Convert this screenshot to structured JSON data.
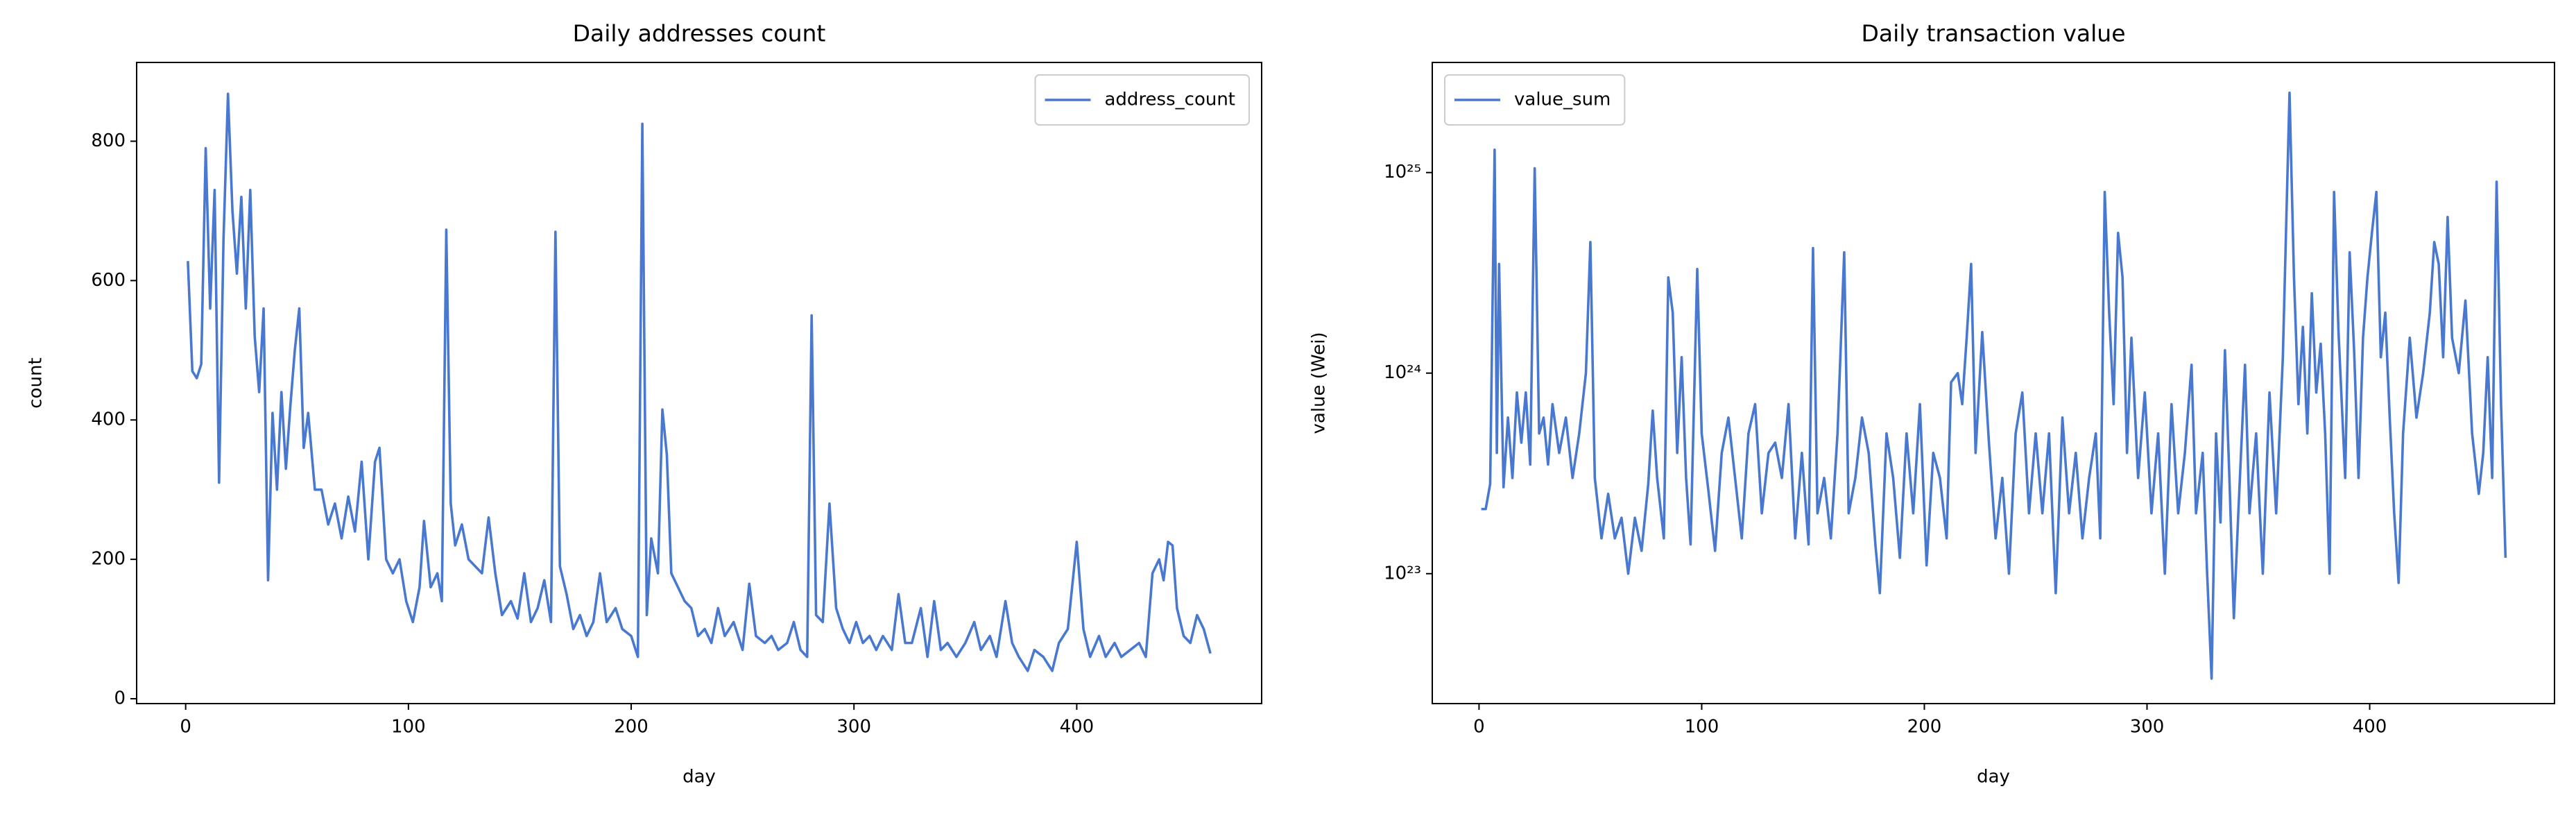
{
  "chart_data": [
    {
      "type": "line",
      "title": "Daily addresses count",
      "xlabel": "day",
      "ylabel": "count",
      "xlim": [
        -22,
        483
      ],
      "ylim": [
        -7,
        913
      ],
      "xticks": [
        0,
        100,
        200,
        300,
        400
      ],
      "yticks": [
        0,
        200,
        400,
        600,
        800
      ],
      "legend": "upper right",
      "x": [
        1,
        3,
        5,
        7,
        9,
        11,
        13,
        15,
        17,
        19,
        21,
        23,
        25,
        27,
        29,
        31,
        33,
        35,
        37,
        39,
        41,
        43,
        45,
        47,
        49,
        51,
        53,
        55,
        58,
        61,
        64,
        67,
        70,
        73,
        76,
        79,
        82,
        85,
        87,
        90,
        93,
        96,
        99,
        102,
        105,
        107,
        110,
        113,
        115,
        117,
        119,
        121,
        124,
        127,
        130,
        133,
        136,
        139,
        142,
        146,
        149,
        152,
        155,
        158,
        161,
        164,
        166,
        168,
        171,
        174,
        177,
        180,
        183,
        186,
        189,
        193,
        196,
        200,
        203,
        205,
        207,
        209,
        212,
        214,
        216,
        218,
        221,
        224,
        227,
        230,
        233,
        236,
        239,
        242,
        246,
        250,
        253,
        256,
        260,
        263,
        266,
        270,
        273,
        276,
        279,
        281,
        283,
        286,
        289,
        292,
        295,
        298,
        301,
        304,
        307,
        310,
        313,
        317,
        320,
        323,
        326,
        330,
        333,
        336,
        339,
        342,
        346,
        350,
        354,
        357,
        361,
        364,
        368,
        371,
        374,
        378,
        381,
        385,
        389,
        392,
        396,
        400,
        403,
        406,
        410,
        413,
        417,
        420,
        424,
        428,
        431,
        434,
        437,
        439,
        441,
        443,
        445,
        448,
        451,
        454,
        457,
        460
      ],
      "series": [
        {
          "name": "address_count",
          "color": "#4878cf",
          "values": [
            628,
            470,
            460,
            480,
            790,
            560,
            730,
            310,
            660,
            868,
            700,
            610,
            720,
            560,
            730,
            520,
            440,
            560,
            170,
            410,
            300,
            440,
            330,
            420,
            500,
            560,
            360,
            410,
            300,
            300,
            250,
            280,
            230,
            290,
            240,
            340,
            200,
            340,
            360,
            200,
            180,
            200,
            140,
            110,
            160,
            255,
            160,
            180,
            140,
            673,
            280,
            220,
            250,
            200,
            190,
            180,
            260,
            180,
            120,
            140,
            115,
            180,
            110,
            130,
            170,
            110,
            670,
            190,
            150,
            100,
            120,
            90,
            110,
            180,
            110,
            130,
            100,
            90,
            60,
            825,
            120,
            230,
            180,
            415,
            350,
            180,
            160,
            140,
            130,
            90,
            100,
            80,
            130,
            90,
            110,
            70,
            165,
            90,
            80,
            90,
            70,
            80,
            110,
            70,
            60,
            550,
            120,
            110,
            280,
            130,
            100,
            80,
            110,
            80,
            90,
            70,
            90,
            70,
            150,
            80,
            80,
            130,
            60,
            140,
            70,
            80,
            60,
            80,
            110,
            70,
            90,
            60,
            140,
            80,
            60,
            40,
            70,
            60,
            40,
            80,
            100,
            225,
            100,
            60,
            90,
            60,
            80,
            60,
            70,
            80,
            60,
            180,
            200,
            170,
            225,
            220,
            130,
            90,
            80,
            120,
            100,
            65
          ]
        }
      ]
    },
    {
      "type": "line",
      "title": "Daily transaction value",
      "xlabel": "day",
      "ylabel": "value (Wei)",
      "yscale": "log",
      "xlim": [
        -21,
        483
      ],
      "ylim": [
        2.25e+22,
        3.54e+25
      ],
      "xticks": [
        0,
        100,
        200,
        300,
        400
      ],
      "yticks": [
        {
          "value": 1e+23,
          "label": "10²³"
        },
        {
          "value": 1e+24,
          "label": "10²⁴"
        },
        {
          "value": 1e+25,
          "label": "10²⁵"
        }
      ],
      "legend": "upper left",
      "x": [
        1,
        3,
        5,
        7,
        8,
        9,
        11,
        13,
        15,
        17,
        19,
        21,
        23,
        25,
        27,
        29,
        31,
        33,
        36,
        39,
        42,
        45,
        48,
        50,
        52,
        55,
        58,
        61,
        64,
        67,
        70,
        73,
        76,
        78,
        80,
        83,
        85,
        87,
        89,
        91,
        93,
        95,
        98,
        100,
        103,
        106,
        109,
        112,
        115,
        118,
        121,
        124,
        127,
        130,
        133,
        136,
        139,
        142,
        145,
        148,
        150,
        152,
        155,
        158,
        161,
        164,
        166,
        169,
        172,
        175,
        178,
        180,
        183,
        186,
        189,
        192,
        195,
        198,
        201,
        204,
        207,
        210,
        212,
        215,
        217,
        219,
        221,
        223,
        226,
        229,
        232,
        235,
        238,
        241,
        244,
        247,
        250,
        253,
        256,
        259,
        262,
        265,
        268,
        271,
        274,
        277,
        279,
        281,
        283,
        285,
        287,
        289,
        291,
        293,
        296,
        299,
        302,
        305,
        308,
        311,
        314,
        317,
        320,
        322,
        325,
        327,
        329,
        331,
        333,
        335,
        337,
        339,
        341,
        344,
        346,
        349,
        352,
        355,
        358,
        361,
        364,
        366,
        368,
        370,
        372,
        374,
        376,
        378,
        380,
        382,
        384,
        386,
        389,
        391,
        393,
        395,
        397,
        399,
        401,
        403,
        405,
        407,
        409,
        411,
        413,
        415,
        418,
        421,
        424,
        427,
        429,
        431,
        433,
        435,
        437,
        440,
        443,
        446,
        449,
        451,
        453,
        455,
        457,
        459,
        461
      ],
      "series": [
        {
          "name": "value_sum",
          "color": "#4878cf",
          "values": [
            2.1e+23,
            2.1e+23,
            2.8e+23,
            1.3e+25,
            4e+23,
            3.5e+24,
            2.7e+23,
            6e+23,
            3e+23,
            8e+23,
            4.5e+23,
            8e+23,
            3.5e+23,
            1.05e+25,
            5e+23,
            6e+23,
            3.5e+23,
            7e+23,
            4e+23,
            6e+23,
            3e+23,
            5e+23,
            1e+24,
            4.5e+24,
            3e+23,
            1.5e+23,
            2.5e+23,
            1.5e+23,
            1.9e+23,
            1e+23,
            1.9e+23,
            1.3e+23,
            2.8e+23,
            6.5e+23,
            3e+23,
            1.5e+23,
            3e+24,
            2e+24,
            4e+23,
            1.2e+24,
            3e+23,
            1.4e+23,
            3.3e+24,
            5e+23,
            2.6e+23,
            1.3e+23,
            4e+23,
            6e+23,
            3e+23,
            1.5e+23,
            5e+23,
            7e+23,
            2e+23,
            4e+23,
            4.5e+23,
            3e+23,
            7e+23,
            1.5e+23,
            4e+23,
            1.4e+23,
            4.2e+24,
            2e+23,
            3e+23,
            1.5e+23,
            5e+23,
            4e+24,
            2e+23,
            3e+23,
            6e+23,
            4e+23,
            1.4e+23,
            8e+22,
            5e+23,
            3e+23,
            1.2e+23,
            5e+23,
            2e+23,
            7e+23,
            1.1e+23,
            4e+23,
            3e+23,
            1.5e+23,
            9e+23,
            1e+24,
            7e+23,
            1.5e+24,
            3.5e+24,
            4e+23,
            1.6e+24,
            4.5e+23,
            1.5e+23,
            3e+23,
            1e+23,
            5e+23,
            8e+23,
            2e+23,
            5e+23,
            2e+23,
            5e+23,
            8e+22,
            6e+23,
            2e+23,
            4e+23,
            1.5e+23,
            3e+23,
            5e+23,
            1.5e+23,
            8e+24,
            2e+24,
            7e+23,
            5e+24,
            3e+24,
            4e+23,
            1.5e+24,
            3e+23,
            8e+23,
            2e+23,
            5e+23,
            1e+23,
            7e+23,
            2e+23,
            4e+23,
            1.1e+24,
            2e+23,
            4e+23,
            1e+23,
            3e+22,
            5e+23,
            1.8e+23,
            1.3e+24,
            3e+23,
            6e+22,
            2e+23,
            1.1e+24,
            2e+23,
            5e+23,
            1e+23,
            8e+23,
            2e+23,
            1.2e+24,
            2.5e+25,
            3e+24,
            7e+23,
            1.7e+24,
            5e+23,
            2.5e+24,
            8e+23,
            1.4e+24,
            5e+23,
            1e+23,
            8e+24,
            1.6e+24,
            3e+23,
            4e+24,
            1.3e+24,
            3e+23,
            1.5e+24,
            3e+24,
            5e+24,
            8e+24,
            1.2e+24,
            2e+24,
            6e+23,
            2e+23,
            9e+22,
            5e+23,
            1.5e+24,
            6e+23,
            1e+24,
            2e+24,
            4.5e+24,
            3.5e+24,
            1.2e+24,
            6e+24,
            1.5e+24,
            1e+24,
            2.3e+24,
            5e+23,
            2.5e+23,
            4e+23,
            1.2e+24,
            3e+23,
            9e+24,
            7e+23,
            1.2e+23
          ]
        }
      ]
    }
  ]
}
